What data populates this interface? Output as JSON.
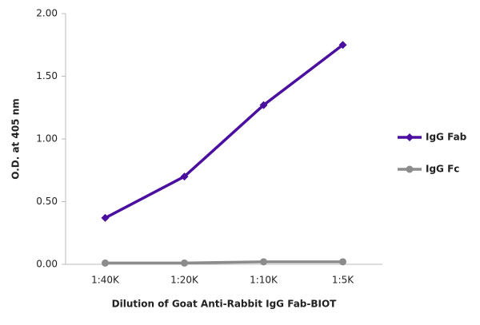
{
  "chart_data": {
    "type": "line",
    "xlabel": "Dilution of Goat Anti-Rabbit IgG Fab-BIOT",
    "ylabel": "O.D. at 405 nm",
    "categories": [
      "1:40K",
      "1:20K",
      "1:10K",
      "1:5K"
    ],
    "series": [
      {
        "name": "IgG Fab",
        "color": "#4b0fa0",
        "marker": "diamond",
        "values": [
          0.37,
          0.7,
          1.27,
          1.75
        ]
      },
      {
        "name": "IgG Fc",
        "color": "#8c8c8c",
        "marker": "circle",
        "values": [
          0.01,
          0.01,
          0.02,
          0.02
        ]
      }
    ],
    "ylim": [
      0,
      2
    ],
    "yticks": [
      {
        "value": 0,
        "label": "0.00"
      },
      {
        "value": 0.5,
        "label": "0.50"
      },
      {
        "value": 1,
        "label": "1.00"
      },
      {
        "value": 1.5,
        "label": "1.50"
      },
      {
        "value": 2,
        "label": "2.00"
      }
    ],
    "grid": false,
    "legend": "right"
  }
}
